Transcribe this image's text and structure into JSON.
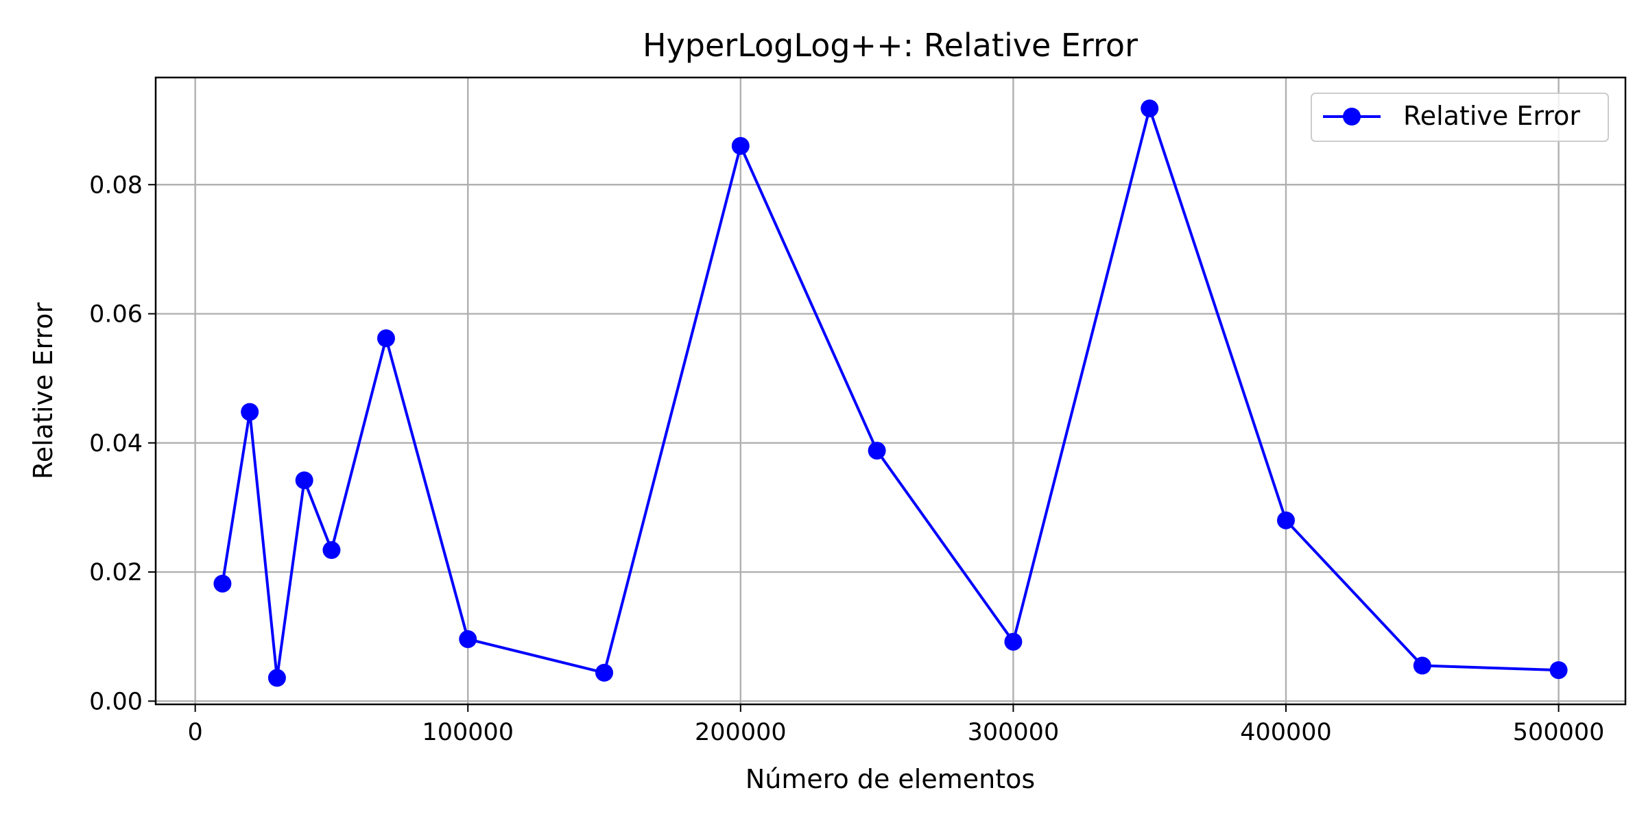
{
  "chart_data": {
    "type": "line",
    "title": "HyperLogLog++: Relative Error",
    "xlabel": "Número de elementos",
    "ylabel": "Relative Error",
    "xlim": [
      -14500,
      524500
    ],
    "ylim": [
      -0.0005,
      0.0966
    ],
    "x_ticks": [
      0,
      100000,
      200000,
      300000,
      400000,
      500000
    ],
    "x_tick_labels": [
      "0",
      "100000",
      "200000",
      "300000",
      "400000",
      "500000"
    ],
    "y_ticks": [
      0.0,
      0.02,
      0.04,
      0.06,
      0.08
    ],
    "y_tick_labels": [
      "0.00",
      "0.02",
      "0.04",
      "0.06",
      "0.08"
    ],
    "grid": true,
    "legend_position": "top-right",
    "series": [
      {
        "name": "Relative Error",
        "color": "#0000ff",
        "marker": "circle",
        "x": [
          10000,
          20000,
          30000,
          40000,
          50000,
          70000,
          100000,
          150000,
          200000,
          250000,
          300000,
          350000,
          400000,
          450000,
          500000
        ],
        "y": [
          0.0182,
          0.0448,
          0.0036,
          0.0342,
          0.0234,
          0.0562,
          0.0096,
          0.0044,
          0.086,
          0.0388,
          0.0092,
          0.0918,
          0.028,
          0.0055,
          0.0048
        ]
      }
    ]
  }
}
